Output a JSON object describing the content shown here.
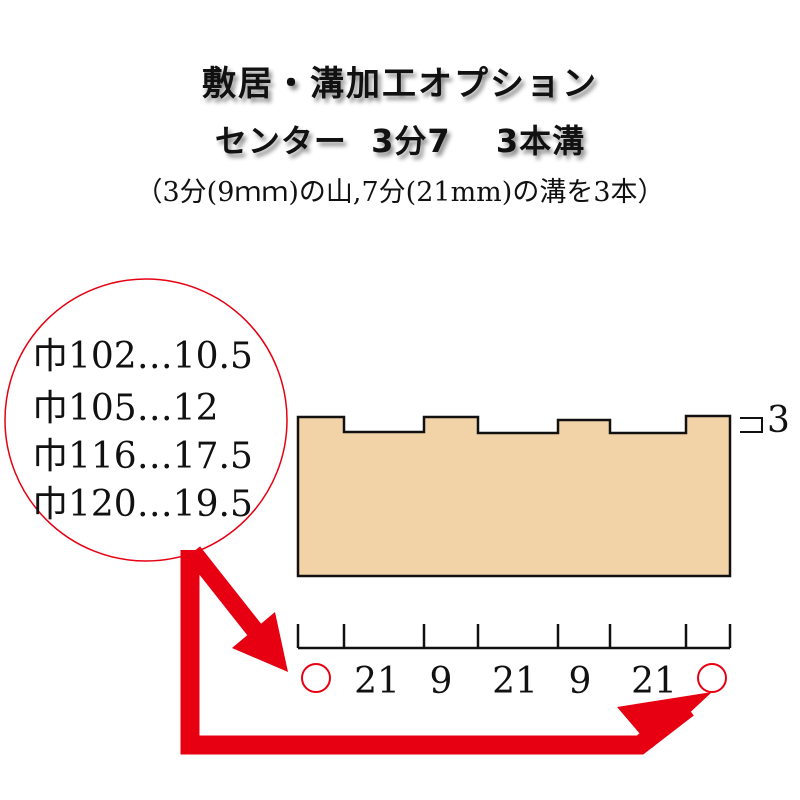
{
  "title": "敷居・溝加工オプション",
  "subtitle": "センター  3分7　 3本溝",
  "note": "（3分(9ｍｍ)の山,7分(21mm)の溝を3本）",
  "width_list": [
    "巾102…10.5",
    "巾105…12",
    "巾116…17.5",
    "巾120…19.5"
  ],
  "groove_depth_label": "3",
  "dimensions": [
    "21",
    "9",
    "21",
    "9",
    "21"
  ],
  "colors": {
    "wood": "#f2d3a8",
    "accent_red": "#e60012",
    "outline": "#111111"
  }
}
